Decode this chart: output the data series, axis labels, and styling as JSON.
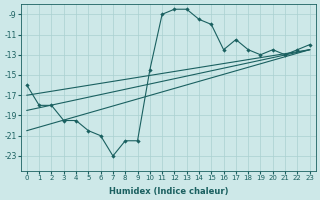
{
  "xlabel": "Humidex (Indice chaleur)",
  "ylabel": "",
  "xlim": [
    -0.5,
    23.5
  ],
  "ylim": [
    -24.5,
    -8
  ],
  "yticks": [
    -23,
    -21,
    -19,
    -17,
    -15,
    -13,
    -11,
    -9
  ],
  "xticks": [
    0,
    1,
    2,
    3,
    4,
    5,
    6,
    7,
    8,
    9,
    10,
    11,
    12,
    13,
    14,
    15,
    16,
    17,
    18,
    19,
    20,
    21,
    22,
    23
  ],
  "bg_color": "#cde8e8",
  "line_color": "#1a6060",
  "grid_color": "#aad0d0",
  "series": [
    {
      "x": [
        0,
        1,
        2,
        3,
        4,
        5,
        6,
        7,
        8,
        9,
        10,
        11,
        12,
        13,
        14,
        15,
        16,
        17,
        18,
        19,
        20,
        21,
        22,
        23
      ],
      "y": [
        -16.0,
        -18.0,
        -18.0,
        -19.5,
        -19.5,
        -20.5,
        -21.0,
        -23.0,
        -21.5,
        -21.5,
        -14.5,
        -9.0,
        -8.5,
        -8.5,
        -9.5,
        -10.0,
        -12.5,
        -11.5,
        -12.5,
        -13.0,
        -12.5,
        -13.0,
        -12.5,
        -12.0
      ],
      "marker": "D"
    },
    {
      "x": [
        0,
        23
      ],
      "y": [
        -17.0,
        -12.5
      ],
      "marker": null
    },
    {
      "x": [
        0,
        23
      ],
      "y": [
        -18.5,
        -12.5
      ],
      "marker": null
    },
    {
      "x": [
        0,
        23
      ],
      "y": [
        -20.5,
        -12.5
      ],
      "marker": null
    }
  ]
}
